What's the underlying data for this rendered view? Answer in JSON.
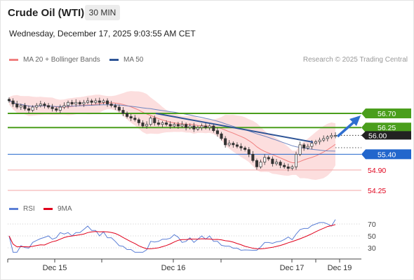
{
  "header": {
    "title": "Crude Oil (WTI)",
    "timeframe": "30 MIN",
    "datetime": "Wednesday, December 17, 2025 9:03:55 AM CET",
    "copyright": "Research © 2025 Trading Central"
  },
  "legend_top": [
    {
      "label": "MA 20 + Bollinger Bands",
      "color": "#f08080"
    },
    {
      "label": "MA 50",
      "color": "#2f5597"
    }
  ],
  "legend_bottom": [
    {
      "label": "RSI",
      "color": "#5b7fd6"
    },
    {
      "label": "9MA",
      "color": "#e0001b"
    }
  ],
  "chart_data": [
    {
      "type": "candlestick",
      "x_tick_labels": [
        "Dec 15",
        "Dec 16",
        "Dec 17",
        "Dec 19"
      ],
      "levels": [
        {
          "value": 56.7,
          "label": "56.70",
          "kind": "resistance",
          "color": "#4a9e1c"
        },
        {
          "value": 56.25,
          "label": "56.25",
          "kind": "resistance",
          "color": "#4a9e1c"
        },
        {
          "value": 56.0,
          "label": "56.00",
          "kind": "last",
          "color": "#222222"
        },
        {
          "value": 55.4,
          "label": "55.40",
          "kind": "pivot",
          "color": "#2266cc"
        },
        {
          "value": 54.9,
          "label": "54.90",
          "kind": "support",
          "color": "#e0001b"
        },
        {
          "value": 54.25,
          "label": "54.25",
          "kind": "support",
          "color": "#e0001b"
        }
      ],
      "close": [
        57.1,
        57.0,
        56.9,
        56.95,
        56.85,
        56.8,
        56.9,
        56.95,
        57.0,
        56.95,
        56.9,
        56.85,
        56.8,
        56.9,
        56.95,
        57.05,
        57.0,
        57.05,
        57.0,
        57.05,
        57.1,
        57.05,
        57.1,
        57.05,
        57.1,
        57.0,
        56.95,
        56.9,
        56.8,
        56.7,
        56.6,
        56.55,
        56.5,
        56.4,
        56.3,
        56.35,
        56.55,
        56.4,
        56.35,
        56.4,
        56.35,
        56.3,
        56.35,
        56.3,
        56.35,
        56.25,
        56.3,
        56.2,
        56.25,
        56.3,
        56.25,
        56.3,
        56.15,
        56.05,
        55.9,
        55.7,
        55.75,
        55.7,
        55.65,
        55.6,
        55.55,
        55.4,
        55.2,
        55.0,
        55.15,
        55.3,
        55.25,
        55.1,
        55.15,
        55.05,
        55.0,
        54.95,
        55.0,
        55.4,
        55.7,
        55.6,
        55.65,
        55.75,
        55.8,
        55.85,
        55.9,
        55.95,
        56.0,
        56.0
      ],
      "rsi_ticks": [
        70,
        50,
        30
      ],
      "rsi_last": 66
    }
  ]
}
